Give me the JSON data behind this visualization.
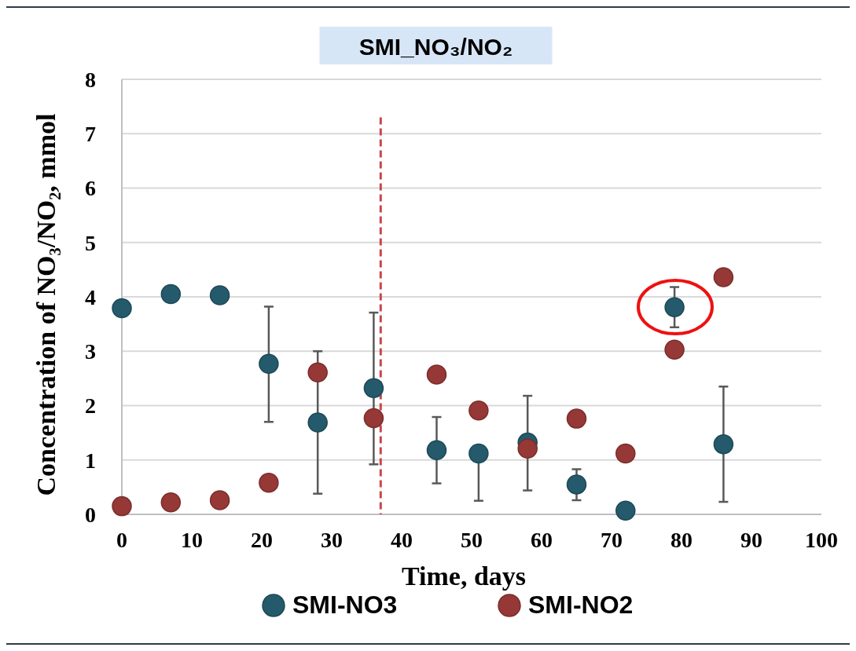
{
  "chart_data": {
    "type": "scatter",
    "title": "SMI_NO₃/NO₂",
    "xlabel": "Time, days",
    "ylabel": "Concentration of NO₃/NO₂, mmol",
    "x": [
      0,
      7,
      14,
      21,
      28,
      36,
      45,
      51,
      58,
      65,
      72,
      79,
      86
    ],
    "series": [
      {
        "name": "SMI-NO3",
        "color": "#245a6b",
        "values": [
          3.79,
          4.05,
          4.03,
          2.77,
          1.69,
          2.32,
          1.18,
          1.12,
          1.32,
          0.55,
          0.07,
          3.81,
          1.29
        ],
        "errors": [
          null,
          null,
          null,
          [
            1.7,
            3.82
          ],
          [
            0.38,
            3.0
          ],
          [
            0.92,
            3.71
          ],
          [
            0.57,
            1.79
          ],
          [
            0.25,
            1.12
          ],
          [
            0.44,
            2.18
          ],
          [
            0.26,
            0.83
          ],
          null,
          [
            3.44,
            4.18
          ],
          [
            0.23,
            2.35
          ]
        ]
      },
      {
        "name": "SMI-NO2",
        "color": "#963836",
        "values": [
          0.15,
          0.22,
          0.26,
          0.58,
          2.61,
          1.77,
          2.57,
          1.91,
          1.21,
          1.76,
          1.12,
          3.03,
          4.36
        ]
      }
    ],
    "xlim": [
      0,
      100
    ],
    "xticks": [
      0,
      10,
      20,
      30,
      40,
      50,
      60,
      70,
      80,
      90,
      100
    ],
    "ylim": [
      0,
      8
    ],
    "yticks": [
      0,
      1,
      2,
      3,
      4,
      5,
      6,
      7,
      8
    ],
    "grid": "y",
    "legend": "bottom",
    "marker": "circle",
    "ref_lines": [
      {
        "axis": "x",
        "value": 37,
        "color": "#c9474a",
        "line_style": "dashed"
      }
    ]
  }
}
